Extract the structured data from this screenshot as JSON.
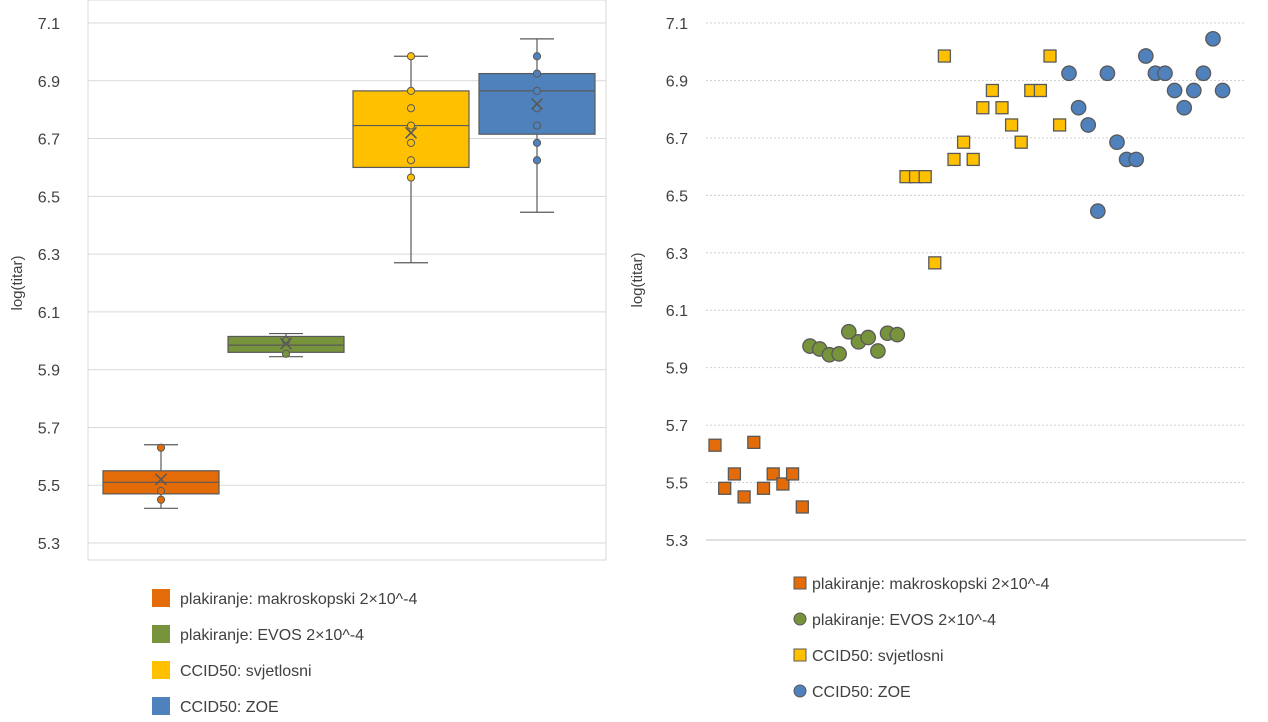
{
  "chart_data": [
    {
      "type": "box",
      "ylabel": "log(titar)",
      "ylim": [
        5.3,
        7.1
      ],
      "y_ticks": [
        "5.3",
        "5.5",
        "5.7",
        "5.9",
        "6.1",
        "6.3",
        "6.5",
        "6.7",
        "6.9",
        "7.1"
      ],
      "grid": true,
      "legend_position": "bottom",
      "series": [
        {
          "name": "plakiranje: makroskopski 2×10^-4",
          "color": "#E36C09",
          "whisker_low": 5.42,
          "q1": 5.47,
          "median": 5.51,
          "q3": 5.55,
          "whisker_high": 5.64,
          "mean": 5.52,
          "points": [
            5.63,
            5.48,
            5.45
          ]
        },
        {
          "name": "plakiranje: EVOS 2×10^-4",
          "color": "#77933C",
          "whisker_low": 5.945,
          "q1": 5.96,
          "median": 5.985,
          "q3": 6.015,
          "whisker_high": 6.025,
          "mean": 5.99,
          "points": [
            6.0,
            5.955
          ]
        },
        {
          "name": "CCID50: svjetlosni",
          "color": "#FFC000",
          "whisker_low": 6.27,
          "q1": 6.6,
          "median": 6.745,
          "q3": 6.865,
          "whisker_high": 6.985,
          "mean": 6.72,
          "points": [
            6.985,
            6.865,
            6.805,
            6.745,
            6.685,
            6.625,
            6.565
          ]
        },
        {
          "name": "CCID50: ZOE",
          "color": "#4F81BD",
          "whisker_low": 6.445,
          "q1": 6.715,
          "median": 6.865,
          "q3": 6.925,
          "whisker_high": 7.045,
          "mean": 6.82,
          "points": [
            6.985,
            6.925,
            6.865,
            6.805,
            6.745,
            6.685,
            6.625
          ]
        }
      ]
    },
    {
      "type": "scatter",
      "ylabel": "log(titar)",
      "ylim": [
        5.3,
        7.1
      ],
      "y_ticks": [
        "5.3",
        "5.5",
        "5.7",
        "5.9",
        "6.1",
        "6.3",
        "6.5",
        "6.7",
        "6.9",
        "7.1"
      ],
      "grid": true,
      "legend_position": "bottom",
      "series": [
        {
          "name": "plakiranje: makroskopski 2×10^-4",
          "color": "#E36C09",
          "marker": "square",
          "values": [
            5.63,
            5.48,
            5.53,
            5.45,
            5.64,
            5.48,
            5.53,
            5.495,
            5.53,
            5.415
          ]
        },
        {
          "name": "plakiranje: EVOS 2×10^-4",
          "color": "#77933C",
          "marker": "circle",
          "values": [
            5.975,
            5.965,
            5.945,
            5.948,
            6.025,
            5.99,
            6.005,
            5.958,
            6.02,
            6.015
          ]
        },
        {
          "name": "CCID50: svjetlosni",
          "color": "#FFC000",
          "marker": "square",
          "values": [
            6.565,
            6.565,
            6.565,
            6.265,
            6.985,
            6.625,
            6.685,
            6.625,
            6.805,
            6.865,
            6.805,
            6.745,
            6.685,
            6.865,
            6.865,
            6.985,
            6.745
          ]
        },
        {
          "name": "CCID50: ZOE",
          "color": "#4F81BD",
          "marker": "circle",
          "values": [
            6.925,
            6.805,
            6.745,
            6.445,
            6.925,
            6.685,
            6.625,
            6.625,
            6.985,
            6.925,
            6.925,
            6.865,
            6.805,
            6.865,
            6.925,
            7.045,
            6.865
          ]
        }
      ]
    }
  ]
}
